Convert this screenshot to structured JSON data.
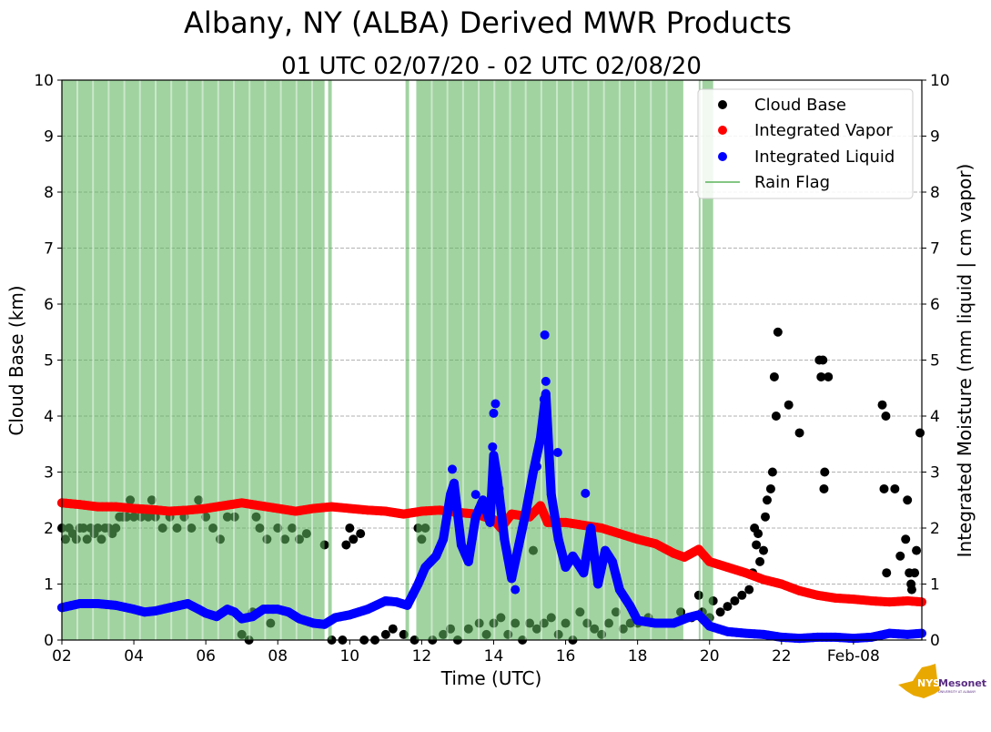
{
  "chart_data": {
    "type": "scatter",
    "title": "Albany, NY (ALBA) Derived MWR Products",
    "subtitle": "01 UTC 02/07/20 - 02 UTC 02/08/20",
    "xlabel": "Time (UTC)",
    "ylabel": "Cloud Base (km)",
    "y2label": "Integrated Moisture (mm liquid | cm vapor)",
    "xlim_hours": [
      2,
      25.9
    ],
    "ylim": [
      0,
      10
    ],
    "y2lim": [
      0,
      10
    ],
    "grid": "horizontal-dashed",
    "legend_placement": "top-right",
    "x_ticks": [
      {
        "t": 2,
        "label": "02"
      },
      {
        "t": 4,
        "label": "04"
      },
      {
        "t": 6,
        "label": "06"
      },
      {
        "t": 8,
        "label": "08"
      },
      {
        "t": 10,
        "label": "10"
      },
      {
        "t": 12,
        "label": "12"
      },
      {
        "t": 14,
        "label": "14"
      },
      {
        "t": 16,
        "label": "16"
      },
      {
        "t": 18,
        "label": "18"
      },
      {
        "t": 20,
        "label": "20"
      },
      {
        "t": 22,
        "label": "22"
      },
      {
        "t": 24,
        "label": "Feb-08"
      }
    ],
    "y_ticks": [
      "0",
      "1",
      "2",
      "3",
      "4",
      "5",
      "6",
      "7",
      "8",
      "9",
      "10"
    ],
    "legend": [
      "Cloud Base",
      "Integrated Vapor",
      "Integrated Liquid",
      "Rain Flag"
    ],
    "colors": {
      "cloud_base": "#000000",
      "vapor": "#ff0000",
      "liquid": "#0000ff",
      "rain": "#5cb35c"
    },
    "rain_flag_intervals": [
      [
        2.0,
        9.3
      ],
      [
        9.4,
        9.5
      ],
      [
        11.55,
        11.65
      ],
      [
        11.85,
        19.27
      ],
      [
        19.7,
        19.75
      ],
      [
        19.8,
        20.1
      ]
    ],
    "integrated_vapor": [
      [
        2,
        2.45
      ],
      [
        2.5,
        2.42
      ],
      [
        3,
        2.38
      ],
      [
        3.5,
        2.38
      ],
      [
        4,
        2.35
      ],
      [
        4.5,
        2.33
      ],
      [
        5,
        2.3
      ],
      [
        5.5,
        2.32
      ],
      [
        6,
        2.35
      ],
      [
        6.5,
        2.4
      ],
      [
        7,
        2.45
      ],
      [
        7.5,
        2.4
      ],
      [
        8,
        2.35
      ],
      [
        8.5,
        2.3
      ],
      [
        9,
        2.35
      ],
      [
        9.5,
        2.38
      ],
      [
        10,
        2.35
      ],
      [
        10.5,
        2.32
      ],
      [
        11,
        2.3
      ],
      [
        11.5,
        2.25
      ],
      [
        12,
        2.3
      ],
      [
        12.5,
        2.32
      ],
      [
        13,
        2.28
      ],
      [
        13.5,
        2.25
      ],
      [
        14,
        2.15
      ],
      [
        14.2,
        2.0
      ],
      [
        14.5,
        2.25
      ],
      [
        15,
        2.2
      ],
      [
        15.3,
        2.4
      ],
      [
        15.5,
        2.1
      ],
      [
        16,
        2.1
      ],
      [
        16.5,
        2.05
      ],
      [
        17,
        2.0
      ],
      [
        17.5,
        1.9
      ],
      [
        18,
        1.8
      ],
      [
        18.5,
        1.72
      ],
      [
        19,
        1.55
      ],
      [
        19.3,
        1.48
      ],
      [
        19.7,
        1.62
      ],
      [
        20,
        1.4
      ],
      [
        20.5,
        1.3
      ],
      [
        21,
        1.2
      ],
      [
        21.5,
        1.08
      ],
      [
        22,
        1.0
      ],
      [
        22.5,
        0.88
      ],
      [
        23,
        0.8
      ],
      [
        23.5,
        0.75
      ],
      [
        24,
        0.73
      ],
      [
        24.5,
        0.7
      ],
      [
        25,
        0.68
      ],
      [
        25.5,
        0.7
      ],
      [
        25.9,
        0.68
      ]
    ],
    "integrated_liquid": [
      [
        2,
        0.58
      ],
      [
        2.5,
        0.65
      ],
      [
        3,
        0.65
      ],
      [
        3.5,
        0.62
      ],
      [
        4,
        0.55
      ],
      [
        4.3,
        0.5
      ],
      [
        4.6,
        0.52
      ],
      [
        5,
        0.58
      ],
      [
        5.5,
        0.65
      ],
      [
        5.8,
        0.55
      ],
      [
        6,
        0.48
      ],
      [
        6.3,
        0.42
      ],
      [
        6.6,
        0.55
      ],
      [
        6.8,
        0.5
      ],
      [
        7,
        0.38
      ],
      [
        7.3,
        0.42
      ],
      [
        7.6,
        0.55
      ],
      [
        8,
        0.55
      ],
      [
        8.3,
        0.5
      ],
      [
        8.6,
        0.38
      ],
      [
        9,
        0.3
      ],
      [
        9.3,
        0.28
      ],
      [
        9.6,
        0.4
      ],
      [
        10,
        0.45
      ],
      [
        10.5,
        0.55
      ],
      [
        11,
        0.7
      ],
      [
        11.3,
        0.68
      ],
      [
        11.6,
        0.62
      ],
      [
        11.9,
        1.0
      ],
      [
        12.1,
        1.3
      ],
      [
        12.4,
        1.5
      ],
      [
        12.6,
        1.8
      ],
      [
        12.8,
        2.6
      ],
      [
        12.9,
        2.8
      ],
      [
        13.1,
        1.7
      ],
      [
        13.3,
        1.4
      ],
      [
        13.5,
        2.2
      ],
      [
        13.7,
        2.5
      ],
      [
        13.9,
        2.1
      ],
      [
        14,
        3.3
      ],
      [
        14.1,
        2.9
      ],
      [
        14.3,
        1.8
      ],
      [
        14.5,
        1.1
      ],
      [
        14.7,
        1.7
      ],
      [
        14.9,
        2.3
      ],
      [
        15.1,
        3.0
      ],
      [
        15.3,
        3.6
      ],
      [
        15.45,
        4.4
      ],
      [
        15.6,
        2.6
      ],
      [
        15.8,
        1.8
      ],
      [
        16,
        1.3
      ],
      [
        16.2,
        1.5
      ],
      [
        16.5,
        1.2
      ],
      [
        16.7,
        2.0
      ],
      [
        16.9,
        1.0
      ],
      [
        17.1,
        1.6
      ],
      [
        17.3,
        1.4
      ],
      [
        17.5,
        0.9
      ],
      [
        17.8,
        0.6
      ],
      [
        18,
        0.35
      ],
      [
        18.5,
        0.3
      ],
      [
        19,
        0.3
      ],
      [
        19.4,
        0.4
      ],
      [
        19.7,
        0.45
      ],
      [
        20,
        0.25
      ],
      [
        20.5,
        0.15
      ],
      [
        21,
        0.12
      ],
      [
        21.5,
        0.1
      ],
      [
        22,
        0.05
      ],
      [
        22.5,
        0.03
      ],
      [
        23,
        0.05
      ],
      [
        23.5,
        0.05
      ],
      [
        24,
        0.03
      ],
      [
        24.5,
        0.05
      ],
      [
        25,
        0.12
      ],
      [
        25.5,
        0.1
      ],
      [
        25.9,
        0.12
      ]
    ],
    "integrated_liquid_outliers": [
      [
        15.42,
        5.45
      ],
      [
        15.45,
        4.62
      ],
      [
        15.4,
        4.3
      ],
      [
        14.05,
        4.22
      ],
      [
        14.0,
        4.05
      ],
      [
        13.97,
        3.45
      ],
      [
        12.85,
        3.05
      ],
      [
        15.78,
        3.35
      ],
      [
        15.2,
        3.1
      ],
      [
        16.55,
        2.62
      ],
      [
        13.5,
        2.6
      ],
      [
        14.15,
        2.7
      ],
      [
        14.6,
        0.9
      ]
    ],
    "cloud_base": [
      [
        2,
        2.0
      ],
      [
        2.1,
        1.8
      ],
      [
        2.2,
        2.0
      ],
      [
        2.3,
        1.9
      ],
      [
        2.4,
        1.8
      ],
      [
        2.5,
        2.0
      ],
      [
        2.6,
        2.0
      ],
      [
        2.7,
        1.8
      ],
      [
        2.8,
        2.0
      ],
      [
        2.9,
        1.9
      ],
      [
        3.0,
        2.0
      ],
      [
        3.1,
        1.8
      ],
      [
        3.2,
        2.0
      ],
      [
        3.3,
        2.0
      ],
      [
        3.4,
        1.9
      ],
      [
        3.5,
        2.0
      ],
      [
        3.6,
        2.2
      ],
      [
        3.7,
        2.2
      ],
      [
        3.8,
        2.2
      ],
      [
        3.9,
        2.5
      ],
      [
        4.0,
        2.2
      ],
      [
        4.2,
        2.2
      ],
      [
        4.4,
        2.2
      ],
      [
        4.5,
        2.5
      ],
      [
        4.6,
        2.2
      ],
      [
        4.8,
        2.0
      ],
      [
        5.0,
        2.2
      ],
      [
        5.2,
        2.0
      ],
      [
        5.4,
        2.2
      ],
      [
        5.6,
        2.0
      ],
      [
        5.8,
        2.5
      ],
      [
        6.0,
        2.2
      ],
      [
        6.2,
        2.0
      ],
      [
        6.4,
        1.8
      ],
      [
        6.6,
        2.2
      ],
      [
        6.8,
        2.2
      ],
      [
        7.0,
        0.1
      ],
      [
        7.2,
        0.0
      ],
      [
        7.3,
        0.5
      ],
      [
        7.4,
        2.2
      ],
      [
        7.5,
        2.0
      ],
      [
        7.7,
        1.8
      ],
      [
        7.8,
        0.3
      ],
      [
        8.0,
        2.0
      ],
      [
        8.2,
        1.8
      ],
      [
        8.4,
        2.0
      ],
      [
        8.6,
        1.8
      ],
      [
        8.8,
        1.9
      ],
      [
        9.3,
        1.7
      ],
      [
        9.5,
        0.0
      ],
      [
        9.8,
        0.0
      ],
      [
        9.9,
        1.7
      ],
      [
        10.0,
        2.0
      ],
      [
        10.1,
        1.8
      ],
      [
        10.3,
        1.9
      ],
      [
        10.4,
        0.0
      ],
      [
        10.7,
        0.0
      ],
      [
        11.0,
        0.1
      ],
      [
        11.2,
        0.2
      ],
      [
        11.5,
        0.1
      ],
      [
        11.8,
        0.0
      ],
      [
        11.9,
        2.0
      ],
      [
        12.0,
        1.8
      ],
      [
        12.1,
        2.0
      ],
      [
        12.3,
        0.0
      ],
      [
        12.6,
        0.1
      ],
      [
        12.8,
        0.2
      ],
      [
        13.0,
        0.0
      ],
      [
        13.3,
        0.2
      ],
      [
        13.6,
        0.3
      ],
      [
        13.8,
        0.1
      ],
      [
        14.0,
        0.3
      ],
      [
        14.2,
        0.4
      ],
      [
        14.4,
        0.1
      ],
      [
        14.6,
        0.3
      ],
      [
        14.8,
        0.0
      ],
      [
        15.0,
        0.3
      ],
      [
        15.1,
        1.6
      ],
      [
        15.2,
        0.2
      ],
      [
        15.4,
        0.3
      ],
      [
        15.6,
        0.4
      ],
      [
        15.8,
        0.1
      ],
      [
        16.0,
        0.3
      ],
      [
        16.2,
        0.0
      ],
      [
        16.4,
        0.5
      ],
      [
        16.6,
        0.3
      ],
      [
        16.8,
        0.2
      ],
      [
        17.0,
        0.1
      ],
      [
        17.2,
        0.3
      ],
      [
        17.4,
        0.5
      ],
      [
        17.6,
        0.2
      ],
      [
        17.8,
        0.3
      ],
      [
        18.0,
        0.3
      ],
      [
        18.3,
        0.4
      ],
      [
        18.6,
        0.3
      ],
      [
        18.9,
        0.3
      ],
      [
        19.2,
        0.5
      ],
      [
        19.5,
        0.4
      ],
      [
        19.7,
        0.8
      ],
      [
        19.8,
        0.5
      ],
      [
        20.0,
        0.4
      ],
      [
        20.1,
        0.7
      ],
      [
        20.3,
        0.5
      ],
      [
        20.5,
        0.6
      ],
      [
        20.7,
        0.7
      ],
      [
        20.9,
        0.8
      ],
      [
        21.1,
        0.9
      ],
      [
        21.2,
        1.2
      ],
      [
        21.25,
        2.0
      ],
      [
        21.3,
        1.7
      ],
      [
        21.35,
        1.9
      ],
      [
        21.4,
        1.4
      ],
      [
        21.5,
        1.6
      ],
      [
        21.55,
        2.2
      ],
      [
        21.6,
        2.5
      ],
      [
        21.7,
        2.7
      ],
      [
        21.75,
        3.0
      ],
      [
        21.8,
        4.7
      ],
      [
        21.85,
        4.0
      ],
      [
        21.9,
        5.5
      ],
      [
        22.2,
        4.2
      ],
      [
        22.5,
        3.7
      ],
      [
        23.05,
        5.0
      ],
      [
        23.15,
        5.0
      ],
      [
        23.1,
        4.7
      ],
      [
        23.3,
        4.7
      ],
      [
        23.2,
        3.0
      ],
      [
        23.18,
        2.7
      ],
      [
        24.8,
        4.2
      ],
      [
        24.9,
        4.0
      ],
      [
        24.85,
        2.7
      ],
      [
        24.92,
        1.2
      ],
      [
        25.15,
        2.7
      ],
      [
        25.3,
        1.5
      ],
      [
        25.45,
        1.8
      ],
      [
        25.5,
        2.5
      ],
      [
        25.55,
        1.2
      ],
      [
        25.6,
        1.0
      ],
      [
        25.62,
        0.9
      ],
      [
        25.7,
        1.2
      ],
      [
        25.75,
        1.6
      ],
      [
        25.85,
        3.7
      ]
    ]
  },
  "logo": {
    "text": "NYS Mesonet",
    "subtext": "UNIVERSITY AT ALBANY"
  }
}
